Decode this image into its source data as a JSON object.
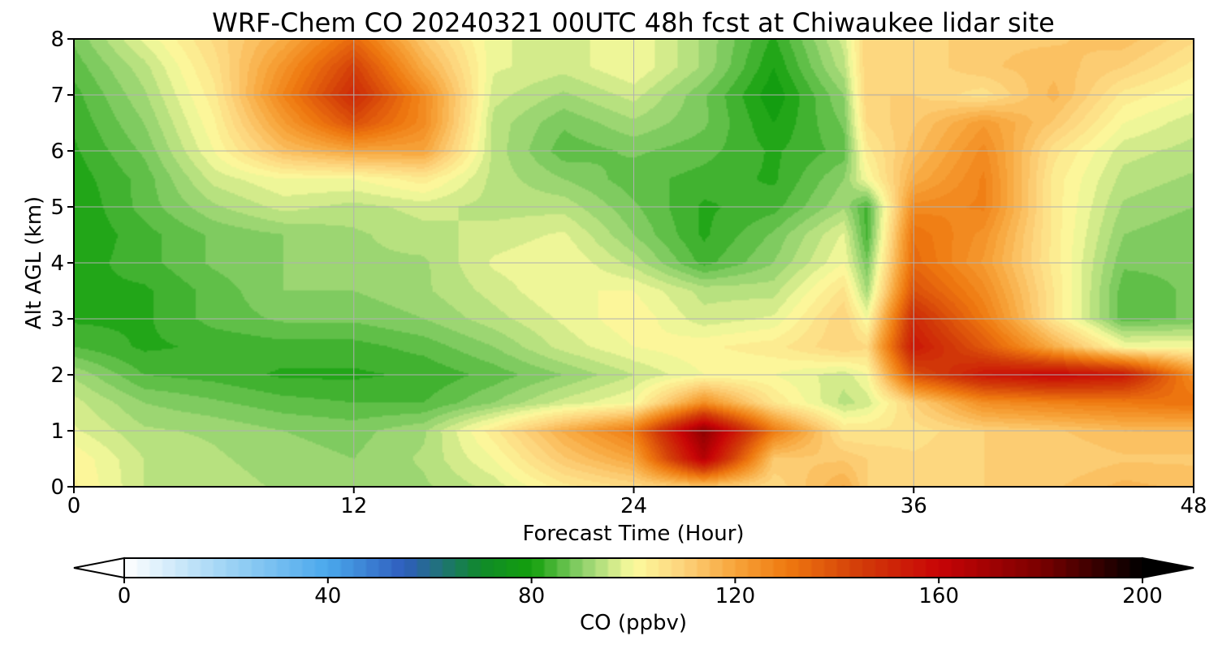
{
  "chart_data": {
    "type": "heatmap",
    "title": "WRF-Chem CO  20240321 00UTC 48h fcst at Chiwaukee lidar site",
    "xlabel": "Forecast Time (Hour)",
    "ylabel": "Alt AGL (km)",
    "xlim": [
      0,
      48
    ],
    "ylim": [
      0,
      8
    ],
    "x_ticks": [
      "0",
      "12",
      "24",
      "36",
      "48"
    ],
    "y_ticks": [
      "0",
      "1",
      "2",
      "3",
      "4",
      "5",
      "6",
      "7",
      "8"
    ],
    "grid": true,
    "x": [
      0,
      3,
      6,
      9,
      12,
      15,
      18,
      21,
      24,
      27,
      30,
      33,
      34,
      36,
      39,
      42,
      45,
      48
    ],
    "y": [
      0,
      0.5,
      1,
      1.5,
      2,
      2.5,
      3,
      3.5,
      4,
      4.5,
      5,
      5.5,
      6,
      6.5,
      7,
      7.5,
      8
    ],
    "z": [
      [
        103,
        95,
        94,
        92,
        90,
        92,
        96,
        104,
        108,
        112,
        108,
        118,
        110,
        108,
        110,
        112,
        116,
        114
      ],
      [
        102,
        95,
        93,
        91,
        90,
        93,
        100,
        112,
        120,
        165,
        112,
        112,
        110,
        108,
        110,
        110,
        112,
        112
      ],
      [
        98,
        93,
        92,
        90,
        89,
        92,
        104,
        118,
        130,
        175,
        130,
        105,
        105,
        106,
        110,
        112,
        115,
        115
      ],
      [
        96,
        90,
        88,
        86,
        85,
        85,
        90,
        96,
        100,
        125,
        105,
        94,
        96,
        110,
        125,
        128,
        130,
        132
      ],
      [
        92,
        85,
        84,
        82,
        82,
        83,
        86,
        90,
        95,
        100,
        100,
        96,
        100,
        140,
        155,
        160,
        155,
        125
      ],
      [
        85,
        82,
        83,
        84,
        84,
        86,
        90,
        96,
        100,
        102,
        104,
        110,
        108,
        155,
        138,
        118,
        100,
        100
      ],
      [
        82,
        82,
        86,
        88,
        88,
        90,
        94,
        98,
        102,
        96,
        98,
        110,
        100,
        150,
        130,
        105,
        86,
        88
      ],
      [
        82,
        82,
        86,
        90,
        90,
        92,
        96,
        100,
        100,
        94,
        94,
        106,
        92,
        140,
        126,
        105,
        86,
        88
      ],
      [
        81,
        84,
        88,
        90,
        92,
        92,
        98,
        100,
        94,
        84,
        90,
        100,
        88,
        134,
        122,
        104,
        88,
        88
      ],
      [
        80,
        84,
        88,
        90,
        92,
        94,
        96,
        98,
        90,
        82,
        88,
        98,
        84,
        132,
        124,
        104,
        90,
        88
      ],
      [
        80,
        86,
        92,
        96,
        94,
        96,
        94,
        94,
        88,
        82,
        84,
        92,
        84,
        126,
        128,
        104,
        92,
        90
      ],
      [
        81,
        86,
        96,
        100,
        100,
        104,
        94,
        90,
        86,
        84,
        82,
        90,
        100,
        118,
        128,
        104,
        94,
        92
      ],
      [
        82,
        88,
        100,
        114,
        120,
        120,
        94,
        86,
        88,
        86,
        82,
        86,
        104,
        114,
        126,
        106,
        96,
        94
      ],
      [
        83,
        90,
        102,
        122,
        140,
        126,
        94,
        88,
        92,
        88,
        80,
        88,
        108,
        112,
        122,
        112,
        100,
        96
      ],
      [
        84,
        92,
        104,
        128,
        150,
        126,
        96,
        92,
        96,
        88,
        78,
        90,
        110,
        110,
        106,
        116,
        104,
        100
      ],
      [
        86,
        94,
        106,
        124,
        144,
        118,
        98,
        96,
        100,
        92,
        80,
        94,
        110,
        108,
        112,
        114,
        110,
        104
      ],
      [
        88,
        98,
        108,
        118,
        134,
        112,
        98,
        96,
        100,
        92,
        82,
        96,
        110,
        108,
        112,
        112,
        114,
        108
      ]
    ],
    "colorbar": {
      "label": "CO  (ppbv)",
      "ticks": [
        "0",
        "40",
        "80",
        "120",
        "160",
        "200"
      ],
      "range": [
        0,
        200
      ],
      "extend": "both",
      "colors": {
        "0": "#ffffff",
        "20": "#9fd4f5",
        "40": "#4aa8ec",
        "55": "#2f5dbd",
        "70": "#0f8a2a",
        "80": "#13a00c",
        "90": "#8ed16c",
        "100": "#fcfb9e",
        "110": "#fdd27a",
        "120": "#f7a43a",
        "130": "#ef7a10",
        "145": "#d23a08",
        "160": "#c80406",
        "180": "#7a0000",
        "200": "#000000"
      }
    }
  }
}
